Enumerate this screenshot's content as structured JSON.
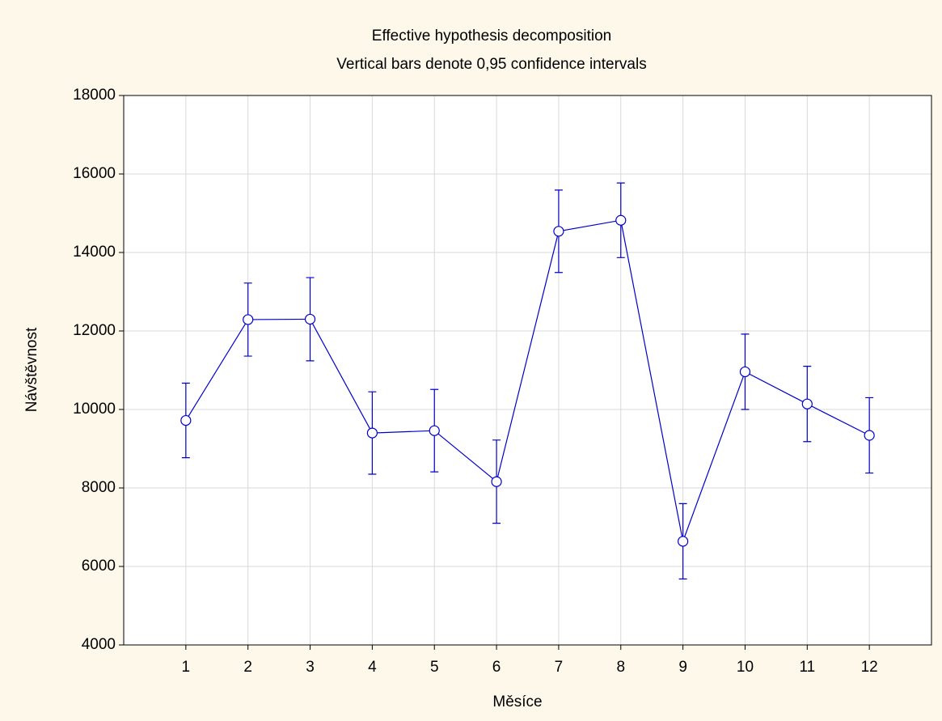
{
  "chart_data": {
    "type": "line",
    "title": "Effective hypothesis decomposition",
    "subtitle": "Vertical bars denote 0,95 confidence intervals",
    "x_label": "Měsíce",
    "y_label": "Návštěvnost",
    "x": [
      1,
      2,
      3,
      4,
      5,
      6,
      7,
      8,
      9,
      10,
      11,
      12
    ],
    "series": [
      {
        "color": "#0000cc",
        "values": [
          9720,
          12290,
          12300,
          9400,
          9460,
          8160,
          14540,
          14820,
          6640,
          10960,
          10140,
          9340
        ],
        "errors": [
          950,
          930,
          1060,
          1050,
          1050,
          1060,
          1050,
          950,
          960,
          960,
          960,
          960
        ]
      }
    ],
    "xlim": [
      0,
      13
    ],
    "xticks": [
      1,
      2,
      3,
      4,
      5,
      6,
      7,
      8,
      9,
      10,
      11,
      12
    ],
    "ylim": [
      4000,
      18000
    ],
    "yticks": [
      4000,
      6000,
      8000,
      10000,
      12000,
      14000,
      16000,
      18000
    ],
    "grid": true
  }
}
